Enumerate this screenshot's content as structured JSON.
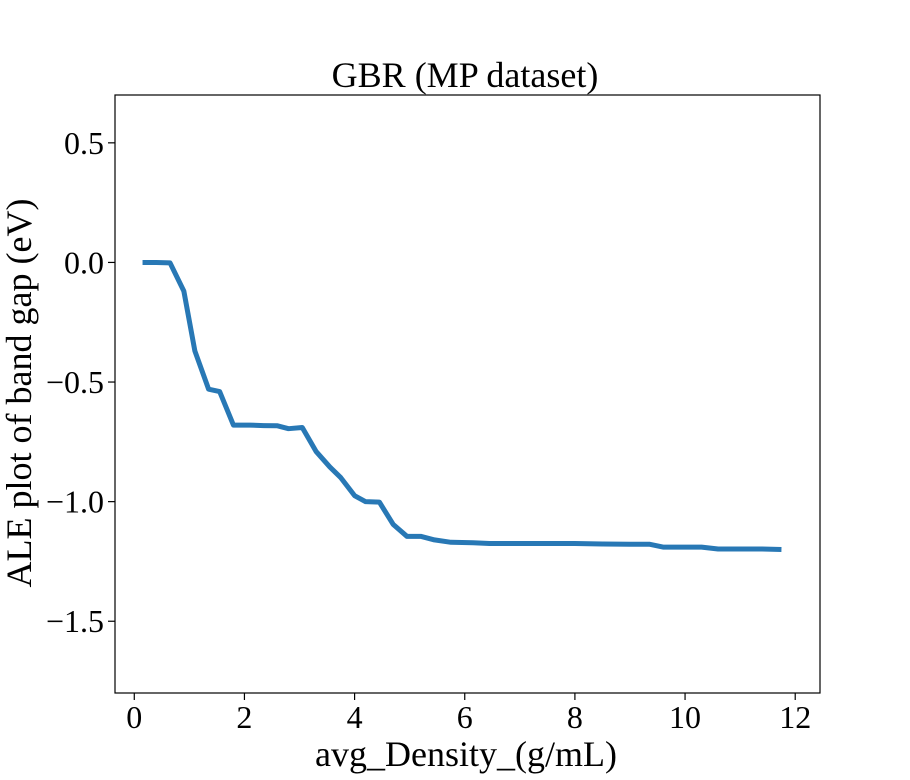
{
  "chart_data": {
    "type": "line",
    "title": "GBR (MP dataset)",
    "xlabel": "avg_Density_(g/mL)",
    "ylabel": "ALE plot of band gap (eV)",
    "xlim": [
      -0.35,
      12.45
    ],
    "ylim": [
      -1.8,
      0.7
    ],
    "xticks": [
      0,
      2,
      4,
      6,
      8,
      10,
      12
    ],
    "xtick_labels": [
      "0",
      "2",
      "4",
      "6",
      "8",
      "10",
      "12"
    ],
    "yticks": [
      0.5,
      0.0,
      -0.5,
      -1.0,
      -1.5
    ],
    "ytick_labels": [
      "0.5",
      "0.0",
      "−0.5",
      "−1.0",
      "−1.5"
    ],
    "grid": false,
    "legend": "none",
    "color": "#2878b5",
    "series": [
      {
        "x": [
          0.15,
          0.4,
          0.65,
          0.9,
          1.1,
          1.35,
          1.55,
          1.8,
          2.1,
          2.35,
          2.6,
          2.8,
          3.05,
          3.3,
          3.55,
          3.75,
          4.0,
          4.2,
          4.45,
          4.7,
          4.95,
          5.2,
          5.45,
          5.75,
          6.15,
          6.45,
          7.0,
          7.5,
          8.0,
          8.5,
          9.0,
          9.35,
          9.6,
          10.0,
          10.3,
          10.6,
          11.0,
          11.4,
          11.75
        ],
        "y": [
          0.0,
          0.0,
          -0.002,
          -0.12,
          -0.37,
          -0.53,
          -0.54,
          -0.68,
          -0.68,
          -0.682,
          -0.683,
          -0.695,
          -0.69,
          -0.79,
          -0.855,
          -0.9,
          -0.975,
          -1.0,
          -1.002,
          -1.095,
          -1.145,
          -1.145,
          -1.16,
          -1.17,
          -1.172,
          -1.175,
          -1.175,
          -1.175,
          -1.175,
          -1.177,
          -1.178,
          -1.178,
          -1.19,
          -1.19,
          -1.19,
          -1.198,
          -1.198,
          -1.198,
          -1.2
        ]
      }
    ]
  }
}
